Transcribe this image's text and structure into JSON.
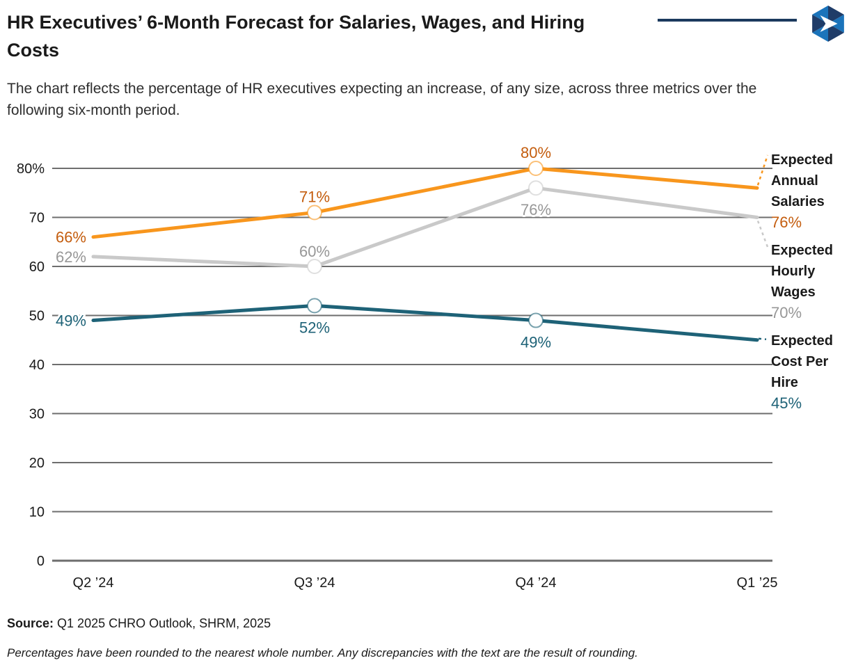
{
  "header": {
    "title": "HR Executives’ 6-Month Forecast for Salaries, Wages, and Hiring Costs",
    "subtitle": "The chart reflects the percentage of HR executives expecting an increase, of any size, across three metrics over the following six-month period."
  },
  "branding": {
    "logo_icon": "shrm-hexagon-logo",
    "rule_color": "#1b3a5e",
    "logo_navy": "#1f3c68",
    "logo_blue": "#1b74bb"
  },
  "chart_data": {
    "type": "line",
    "title": "HR Executives’ 6-Month Forecast for Salaries, Wages, and Hiring Costs",
    "categories": [
      "Q2 ’24",
      "Q3 ’24",
      "Q4 ’24",
      "Q1 ’25"
    ],
    "series": [
      {
        "name": "Expected Annual Salaries",
        "values": [
          66,
          71,
          80,
          76
        ],
        "color": "#f8961d",
        "label_color": "#c45d0e"
      },
      {
        "name": "Expected Hourly Wages",
        "values": [
          62,
          60,
          76,
          70
        ],
        "color": "#c9c9c9",
        "label_color": "#979797"
      },
      {
        "name": "Expected Cost Per Hire",
        "values": [
          49,
          52,
          49,
          45
        ],
        "color": "#1e6277",
        "label_color": "#1e6277"
      }
    ],
    "xlabel": "",
    "ylabel": "",
    "ylim": [
      0,
      80
    ],
    "ytick_step": 10,
    "ytick_top_suffix": "%",
    "value_suffix": "%",
    "grid": true,
    "grid_color": "#6e6e6e",
    "legend_position": "right-end-labels"
  },
  "footer": {
    "source_label": "Source:",
    "source_text": "Q1 2025 CHRO Outlook, SHRM, 2025",
    "footnote": "Percentages have been rounded to the nearest whole number. Any discrepancies with the text are the result of rounding."
  }
}
